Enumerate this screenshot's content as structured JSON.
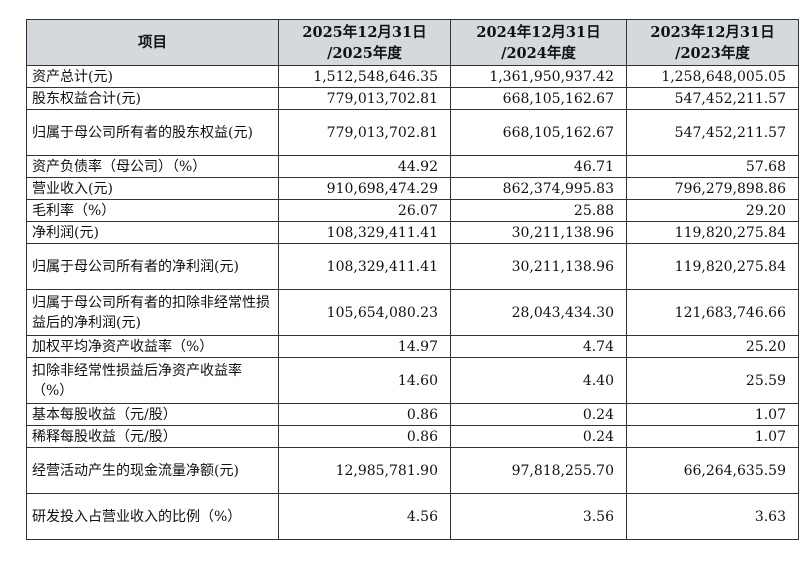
{
  "table": {
    "headers": {
      "item": "项目",
      "cols": [
        {
          "line1": "2025年12月31日",
          "line2": "/2025年度"
        },
        {
          "line1": "2024年12月31日",
          "line2": "/2024年度"
        },
        {
          "line1": "2023年12月31日",
          "line2": "/2023年度"
        }
      ]
    },
    "rows": [
      {
        "label": "资产总计(元)",
        "values": [
          "1,512,548,646.35",
          "1,361,950,937.42",
          "1,258,648,005.05"
        ],
        "tall": false
      },
      {
        "label": "股东权益合计(元)",
        "values": [
          "779,013,702.81",
          "668,105,162.67",
          "547,452,211.57"
        ],
        "tall": false
      },
      {
        "label": "归属于母公司所有者的股东权益(元)",
        "values": [
          "779,013,702.81",
          "668,105,162.67",
          "547,452,211.57"
        ],
        "tall": true
      },
      {
        "label": "资产负债率（母公司）（%）",
        "values": [
          "44.92",
          "46.71",
          "57.68"
        ],
        "tall": false
      },
      {
        "label": "营业收入(元)",
        "values": [
          "910,698,474.29",
          "862,374,995.83",
          "796,279,898.86"
        ],
        "tall": false
      },
      {
        "label": "毛利率（%）",
        "values": [
          "26.07",
          "25.88",
          "29.20"
        ],
        "tall": false
      },
      {
        "label": "净利润(元)",
        "values": [
          "108,329,411.41",
          "30,211,138.96",
          "119,820,275.84"
        ],
        "tall": false
      },
      {
        "label": "归属于母公司所有者的净利润(元)",
        "values": [
          "108,329,411.41",
          "30,211,138.96",
          "119,820,275.84"
        ],
        "tall": true
      },
      {
        "label": "归属于母公司所有者的扣除非经常性损益后的净利润(元)",
        "values": [
          "105,654,080.23",
          "28,043,434.30",
          "121,683,746.66"
        ],
        "tall": true
      },
      {
        "label": "加权平均净资产收益率（%）",
        "values": [
          "14.97",
          "4.74",
          "25.20"
        ],
        "tall": false
      },
      {
        "label": "扣除非经常性损益后净资产收益率（%）",
        "values": [
          "14.60",
          "4.40",
          "25.59"
        ],
        "tall": true
      },
      {
        "label": "基本每股收益（元/股）",
        "values": [
          "0.86",
          "0.24",
          "1.07"
        ],
        "tall": false
      },
      {
        "label": "稀释每股收益（元/股）",
        "values": [
          "0.86",
          "0.24",
          "1.07"
        ],
        "tall": false
      },
      {
        "label": "经营活动产生的现金流量净额(元)",
        "values": [
          "12,985,781.90",
          "97,818,255.70",
          "66,264,635.59"
        ],
        "tall": true
      },
      {
        "label": "研发投入占营业收入的比例（%）",
        "values": [
          "4.56",
          "3.56",
          "3.63"
        ],
        "tall": true
      }
    ]
  }
}
